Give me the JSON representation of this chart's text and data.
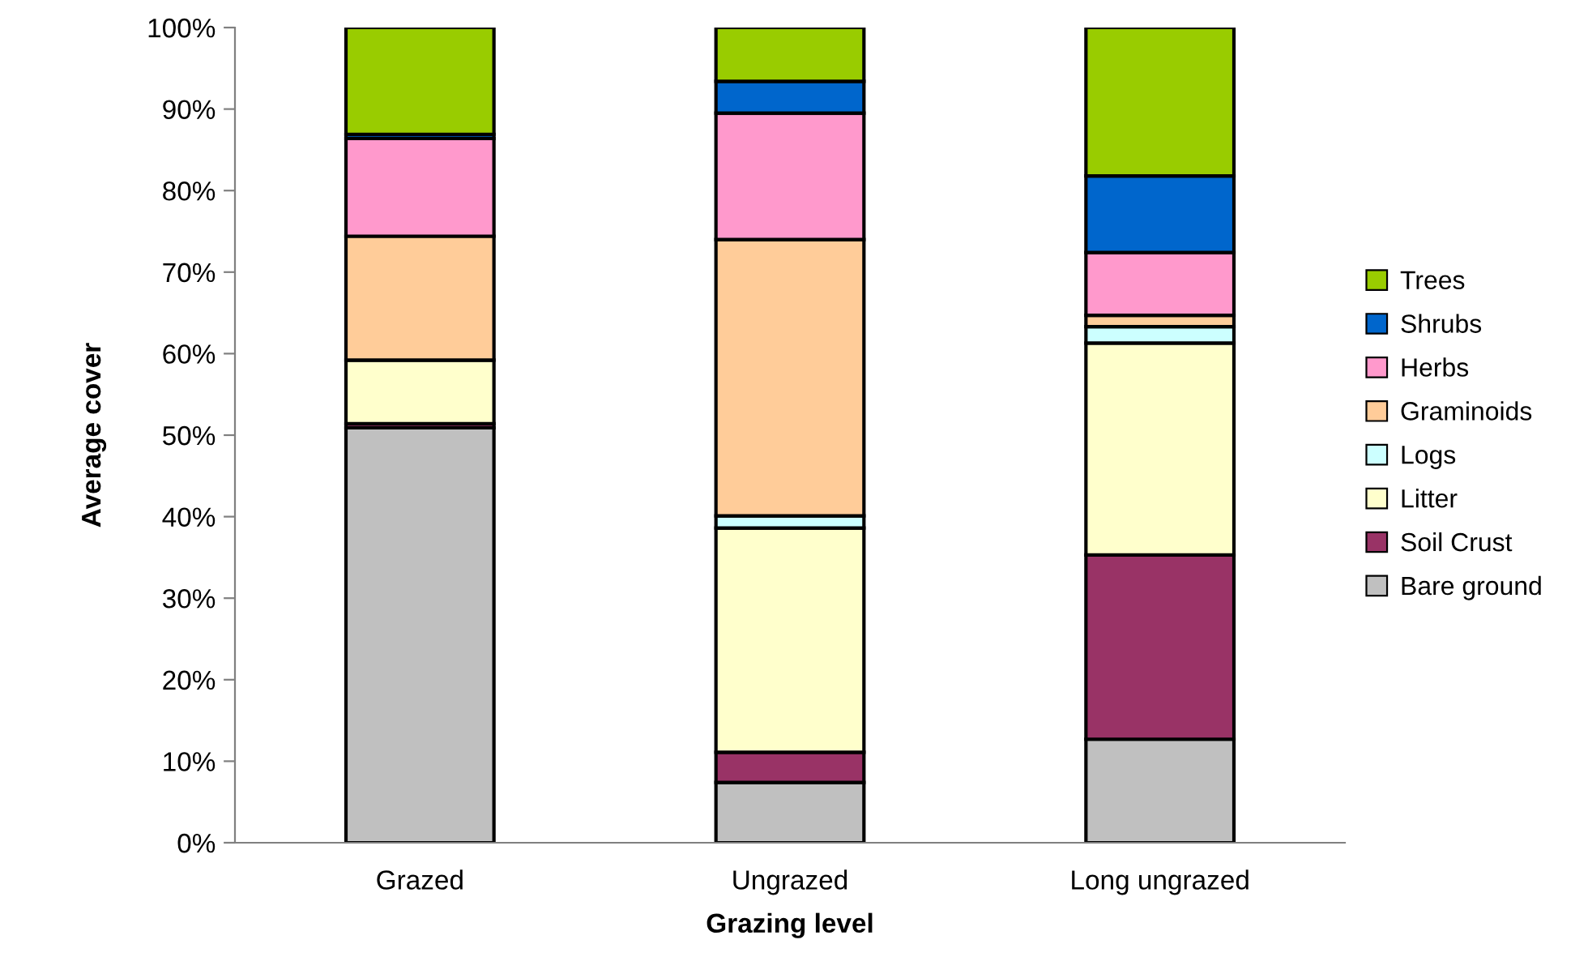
{
  "chart_data": {
    "type": "bar",
    "stacked": true,
    "xlabel": "Grazing level",
    "ylabel": "Average cover",
    "categories": [
      "Grazed",
      "Ungrazed",
      "Long ungrazed"
    ],
    "series": [
      {
        "name": "Bare ground",
        "color": "#c0c0c0",
        "values": [
          50.9,
          7.4,
          12.7
        ]
      },
      {
        "name": "Soil Crust",
        "color": "#993366",
        "values": [
          0.5,
          3.7,
          22.6
        ]
      },
      {
        "name": "Litter",
        "color": "#ffffcc",
        "values": [
          7.8,
          27.5,
          26.0
        ]
      },
      {
        "name": "Logs",
        "color": "#ccffff",
        "values": [
          null,
          1.5,
          2.0
        ]
      },
      {
        "name": "Graminoids",
        "color": "#ffcc99",
        "values": [
          15.2,
          33.9,
          1.4
        ]
      },
      {
        "name": "Herbs",
        "color": "#ff99cc",
        "values": [
          12.0,
          15.5,
          7.7
        ]
      },
      {
        "name": "Shrubs",
        "color": "#0066cc",
        "values": [
          0.5,
          3.9,
          9.4
        ]
      },
      {
        "name": "Trees",
        "color": "#99cc00",
        "values": [
          13.1,
          6.6,
          18.2
        ]
      }
    ],
    "ylim": [
      0,
      100
    ],
    "yticks": [
      {
        "value": 0,
        "label": "0%"
      },
      {
        "value": 10,
        "label": "10%"
      },
      {
        "value": 20,
        "label": "20%"
      },
      {
        "value": 30,
        "label": "30%"
      },
      {
        "value": 40,
        "label": "40%"
      },
      {
        "value": 50,
        "label": "50%"
      },
      {
        "value": 60,
        "label": "60%"
      },
      {
        "value": 70,
        "label": "70%"
      },
      {
        "value": 80,
        "label": "80%"
      },
      {
        "value": 90,
        "label": "90%"
      },
      {
        "value": 100,
        "label": "100%"
      }
    ],
    "grid": false,
    "legend": "right"
  }
}
